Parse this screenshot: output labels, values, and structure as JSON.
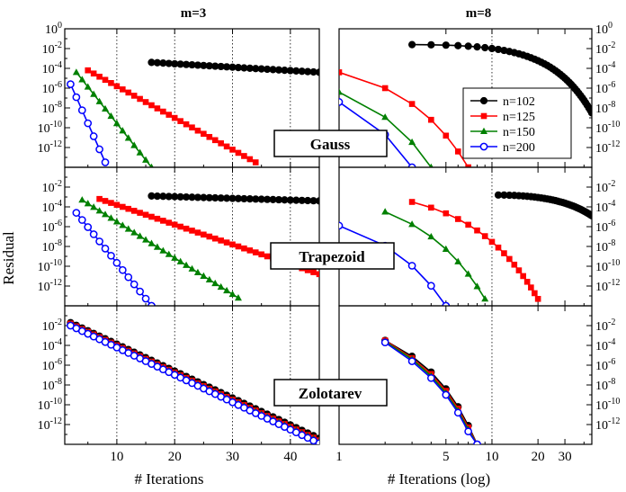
{
  "figure": {
    "ylabel": "Residual",
    "col_titles": [
      "m=3",
      "m=8"
    ],
    "row_labels": [
      "Gauss",
      "Trapezoid",
      "Zolotarev"
    ],
    "xlabel_left": "# Iterations",
    "xlabel_right": "# Iterations (log)",
    "colors": {
      "n102": "#000000",
      "n125": "#ff0000",
      "n150": "#008000",
      "n200": "#0000ff"
    },
    "legend_position": "inside top-right of top-right panel"
  },
  "chart_data": [
    {
      "type": "line",
      "row": "Gauss",
      "column": "m=3",
      "xscale": "linear",
      "xlim": [
        1,
        45
      ],
      "yscale": "log",
      "ylim": [
        1e-14,
        1
      ],
      "xticks": [
        "10",
        "20",
        "30",
        "40"
      ],
      "yticks": [
        "10^0",
        "10^-2",
        "10^-4",
        "10^-6",
        "10^-8",
        "10^-10",
        "10^-12"
      ],
      "vlines_dotted": [
        10,
        20,
        30,
        40
      ],
      "series": [
        {
          "name": "n=102",
          "color": "#000000",
          "marker": "filled-circle",
          "x_range": [
            16,
            45
          ],
          "log10_y_start": -3.4,
          "log10_y_end": -4.4
        },
        {
          "name": "n=125",
          "color": "#ff0000",
          "marker": "filled-square",
          "x_range": [
            5,
            34
          ],
          "log10_y_start": -4.2,
          "log10_y_end": -13.5
        },
        {
          "name": "n=150",
          "color": "#008000",
          "marker": "filled-triangle",
          "x_range": [
            3,
            16
          ],
          "log10_y_start": -4.4,
          "log10_y_end": -14.0
        },
        {
          "name": "n=200",
          "color": "#0000ff",
          "marker": "open-circle",
          "x_range": [
            2,
            8
          ],
          "log10_y_start": -5.6,
          "log10_y_end": -13.5
        }
      ]
    },
    {
      "type": "line",
      "row": "Gauss",
      "column": "m=8",
      "xscale": "log",
      "xlim": [
        1,
        45
      ],
      "yscale": "log",
      "ylim": [
        1e-14,
        1
      ],
      "xticks": [
        "1",
        "5",
        "10",
        "20",
        "30"
      ],
      "yticks": [
        "10^0",
        "10^-2",
        "10^-4",
        "10^-6",
        "10^-8",
        "10^-10",
        "10^-12"
      ],
      "vlines_dotted": [
        10
      ],
      "series": [
        {
          "name": "n=102",
          "color": "#000000",
          "marker": "filled-circle",
          "x_range": [
            3,
            45
          ],
          "log10_y_start": -1.6,
          "log10_y_end": -8.5
        },
        {
          "name": "n=125",
          "color": "#ff0000",
          "marker": "filled-square",
          "x_range": [
            1,
            7
          ],
          "log10_y_start": -4.4,
          "log10_y_end": -14.0
        },
        {
          "name": "n=150",
          "color": "#008000",
          "marker": "filled-triangle",
          "x_range": [
            1,
            4
          ],
          "log10_y_start": -6.4,
          "log10_y_end": -14.0
        },
        {
          "name": "n=200",
          "color": "#0000ff",
          "marker": "open-circle",
          "x_range": [
            1,
            3
          ],
          "log10_y_start": -7.4,
          "log10_y_end": -14.0
        }
      ]
    },
    {
      "type": "line",
      "row": "Trapezoid",
      "column": "m=3",
      "xscale": "linear",
      "xlim": [
        1,
        45
      ],
      "yscale": "log",
      "ylim": [
        1e-14,
        1
      ],
      "xticks": [
        "10",
        "20",
        "30",
        "40"
      ],
      "yticks": [
        "10^-2",
        "10^-4",
        "10^-6",
        "10^-8",
        "10^-10",
        "10^-12"
      ],
      "vlines_dotted": [
        10,
        20,
        30,
        40
      ],
      "series": [
        {
          "name": "n=102",
          "color": "#000000",
          "marker": "filled-circle",
          "x_range": [
            16,
            45
          ],
          "log10_y_start": -2.9,
          "log10_y_end": -3.4
        },
        {
          "name": "n=125",
          "color": "#ff0000",
          "marker": "filled-square",
          "x_range": [
            7,
            45
          ],
          "log10_y_start": -3.2,
          "log10_y_end": -10.8
        },
        {
          "name": "n=150",
          "color": "#008000",
          "marker": "filled-triangle",
          "x_range": [
            4,
            31
          ],
          "log10_y_start": -3.3,
          "log10_y_end": -13.2
        },
        {
          "name": "n=200",
          "color": "#0000ff",
          "marker": "open-circle",
          "x_range": [
            3,
            16
          ],
          "log10_y_start": -4.6,
          "log10_y_end": -14.0
        }
      ]
    },
    {
      "type": "line",
      "row": "Trapezoid",
      "column": "m=8",
      "xscale": "log",
      "xlim": [
        1,
        45
      ],
      "yscale": "log",
      "ylim": [
        1e-14,
        1
      ],
      "xticks": [
        "1",
        "5",
        "10",
        "20",
        "30"
      ],
      "yticks": [
        "10^-2",
        "10^-4",
        "10^-6",
        "10^-8",
        "10^-10",
        "10^-12"
      ],
      "vlines_dotted": [
        10
      ],
      "series": [
        {
          "name": "n=102",
          "color": "#000000",
          "marker": "filled-circle",
          "x_range": [
            11,
            45
          ],
          "log10_y_start": -2.8,
          "log10_y_end": -4.9
        },
        {
          "name": "n=125",
          "color": "#ff0000",
          "marker": "filled-square",
          "x_range": [
            3,
            20
          ],
          "log10_y_start": -3.5,
          "log10_y_end": -13.3
        },
        {
          "name": "n=150",
          "color": "#008000",
          "marker": "filled-triangle",
          "x_range": [
            2,
            9
          ],
          "log10_y_start": -4.5,
          "log10_y_end": -13.3
        },
        {
          "name": "n=200",
          "color": "#0000ff",
          "marker": "open-circle",
          "x_range": [
            1,
            5
          ],
          "log10_y_start": -5.9,
          "log10_y_end": -14.0
        }
      ]
    },
    {
      "type": "line",
      "row": "Zolotarev",
      "column": "m=3",
      "xscale": "linear",
      "xlim": [
        1,
        45
      ],
      "yscale": "log",
      "ylim": [
        1e-14,
        1
      ],
      "xticks": [
        "10",
        "20",
        "30",
        "40"
      ],
      "yticks": [
        "10^-2",
        "10^-4",
        "10^-6",
        "10^-8",
        "10^-10",
        "10^-12"
      ],
      "vlines_dotted": [
        10,
        20,
        30,
        40
      ],
      "series": [
        {
          "name": "n=102",
          "color": "#000000",
          "marker": "filled-circle",
          "x_range": [
            2,
            45
          ],
          "log10_y_start": -1.7,
          "log10_y_end": -13.4
        },
        {
          "name": "n=125",
          "color": "#ff0000",
          "marker": "filled-square",
          "x_range": [
            2,
            45
          ],
          "log10_y_start": -1.8,
          "log10_y_end": -13.6
        },
        {
          "name": "n=150",
          "color": "#008000",
          "marker": "filled-triangle",
          "x_range": [
            2,
            45
          ],
          "log10_y_start": -1.9,
          "log10_y_end": -13.7
        },
        {
          "name": "n=200",
          "color": "#0000ff",
          "marker": "open-circle",
          "x_range": [
            2,
            45
          ],
          "log10_y_start": -2.0,
          "log10_y_end": -13.9
        }
      ]
    },
    {
      "type": "line",
      "row": "Zolotarev",
      "column": "m=8",
      "xscale": "log",
      "xlim": [
        1,
        45
      ],
      "yscale": "log",
      "ylim": [
        1e-14,
        1
      ],
      "xticks": [
        "1",
        "5",
        "10",
        "20",
        "30"
      ],
      "yticks": [
        "10^-2",
        "10^-4",
        "10^-6",
        "10^-8",
        "10^-10",
        "10^-12"
      ],
      "vlines_dotted": [
        10
      ],
      "series": [
        {
          "name": "n=102",
          "color": "#000000",
          "marker": "filled-circle",
          "x": [
            2,
            3,
            4,
            5,
            6,
            7,
            8
          ],
          "log10_y": [
            -3.5,
            -5.1,
            -6.7,
            -8.4,
            -10.2,
            -12.1,
            -14.0
          ]
        },
        {
          "name": "n=125",
          "color": "#ff0000",
          "marker": "filled-square",
          "x": [
            2,
            3,
            4,
            5,
            6,
            7,
            8
          ],
          "log10_y": [
            -3.5,
            -5.3,
            -6.9,
            -8.6,
            -10.4,
            -12.3,
            -14.0
          ]
        },
        {
          "name": "n=150",
          "color": "#008000",
          "marker": "filled-triangle",
          "x": [
            2,
            3,
            4,
            5,
            6,
            7,
            8
          ],
          "log10_y": [
            -3.6,
            -5.4,
            -7.1,
            -8.8,
            -10.6,
            -12.5,
            -14.0
          ]
        },
        {
          "name": "n=200",
          "color": "#0000ff",
          "marker": "open-circle",
          "x": [
            2,
            3,
            4,
            5,
            6,
            7,
            8
          ],
          "log10_y": [
            -3.7,
            -5.6,
            -7.3,
            -9.0,
            -10.8,
            -12.7,
            -14.0
          ]
        }
      ]
    }
  ]
}
